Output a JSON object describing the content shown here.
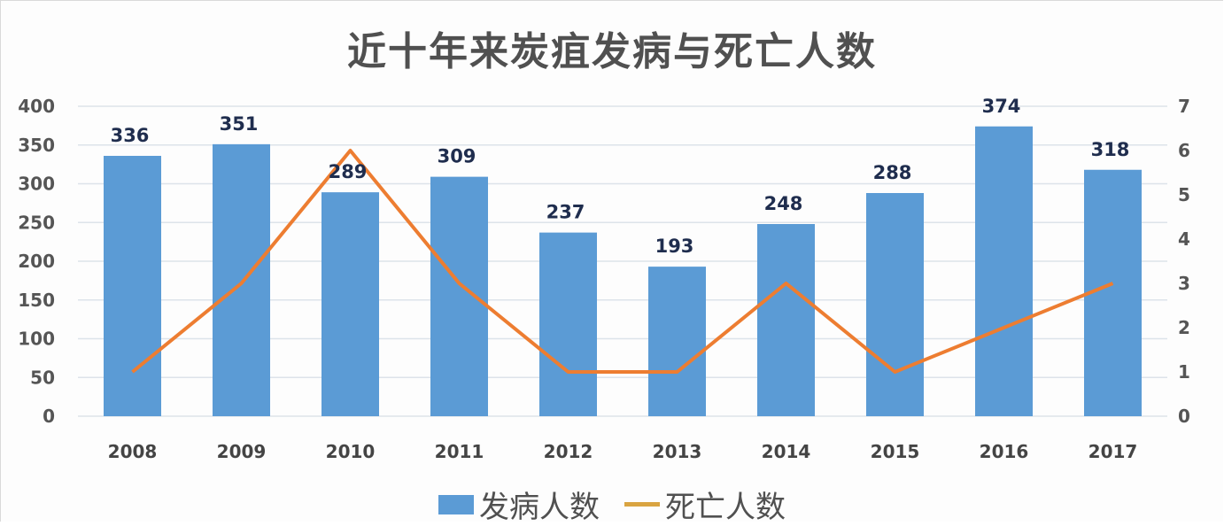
{
  "chart_data": {
    "type": "bar+line",
    "title": "近十年来炭疽发病与死亡人数",
    "categories": [
      "2008",
      "2009",
      "2010",
      "2011",
      "2012",
      "2013",
      "2014",
      "2015",
      "2016",
      "2017"
    ],
    "series": [
      {
        "name": "发病人数",
        "type": "bar",
        "axis": "left",
        "color": "#5B9BD5",
        "values": [
          336,
          351,
          289,
          309,
          237,
          193,
          248,
          288,
          374,
          318
        ]
      },
      {
        "name": "死亡人数",
        "type": "line",
        "axis": "right",
        "color": "#ED7D31",
        "values": [
          1,
          3,
          6,
          3,
          1,
          1,
          3,
          1,
          2,
          3
        ]
      }
    ],
    "left_axis": {
      "min": 0,
      "max": 400,
      "step": 50,
      "ticks": [
        "0",
        "50",
        "100",
        "150",
        "200",
        "250",
        "300",
        "350",
        "400"
      ]
    },
    "right_axis": {
      "min": 0,
      "max": 7,
      "step": 1,
      "ticks": [
        "0",
        "1",
        "2",
        "3",
        "4",
        "5",
        "6",
        "7"
      ]
    },
    "grid": true,
    "legend_position": "bottom",
    "data_labels": "bar values shown above bars"
  },
  "legend": {
    "bar_label": "发病人数",
    "line_label": "死亡人数"
  },
  "colors": {
    "bar": "#5B9BD5",
    "line": "#ED7D31",
    "legend_line": "#D9A441",
    "grid": "#dde3ea",
    "label": "#1f2d4e"
  }
}
